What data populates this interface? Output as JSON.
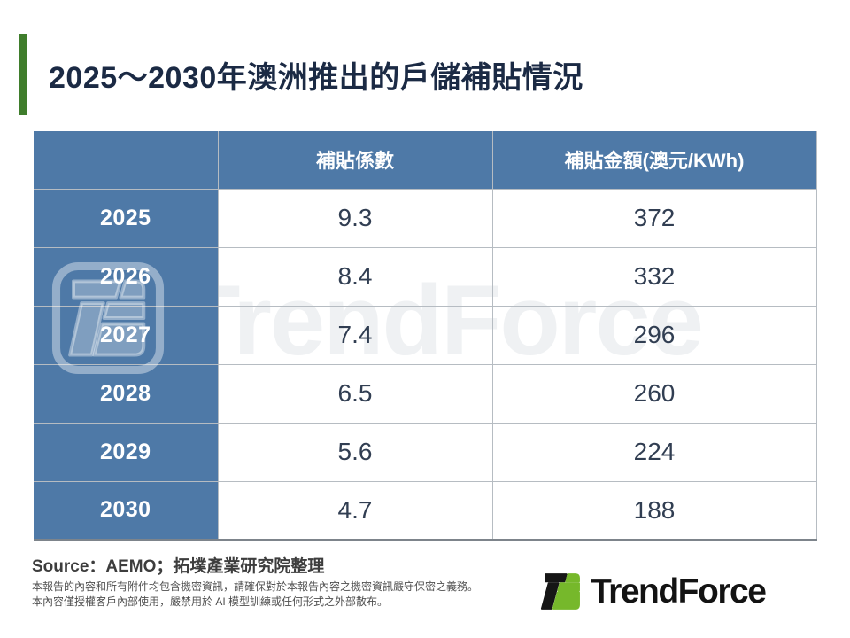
{
  "slide": {
    "title": "2025～2030年澳洲推出的戶儲補貼情況",
    "accent_color": "#3f7d2c",
    "table_header_color": "#4e79a7",
    "title_color": "#1b2a44"
  },
  "table": {
    "headers": [
      "補貼係數",
      "補貼金額(澳元/KWh)"
    ],
    "rows": [
      {
        "year": "2025",
        "coefficient": "9.3",
        "amount": "372"
      },
      {
        "year": "2026",
        "coefficient": "8.4",
        "amount": "332"
      },
      {
        "year": "2027",
        "coefficient": "7.4",
        "amount": "296"
      },
      {
        "year": "2028",
        "coefficient": "6.5",
        "amount": "260"
      },
      {
        "year": "2029",
        "coefficient": "5.6",
        "amount": "224"
      },
      {
        "year": "2030",
        "coefficient": "4.7",
        "amount": "188"
      }
    ]
  },
  "chart_data": {
    "type": "table",
    "title": "2025～2030年澳洲推出的戶儲補貼情況",
    "categories": [
      "2025",
      "2026",
      "2027",
      "2028",
      "2029",
      "2030"
    ],
    "series": [
      {
        "name": "補貼係數",
        "values": [
          9.3,
          8.4,
          7.4,
          6.5,
          5.6,
          4.7
        ]
      },
      {
        "name": "補貼金額(澳元/KWh)",
        "values": [
          372,
          332,
          296,
          260,
          224,
          188
        ]
      }
    ]
  },
  "footer": {
    "source": "Source：AEMO；拓墣產業研究院整理",
    "disclaimer_line1": "本報告的內容和所有附件均包含機密資訊，請確保對於本報告內容之機密資訊嚴守保密之義務。",
    "disclaimer_line2": "本內容僅授權客戶內部使用，嚴禁用於 AI 模型訓練或任何形式之外部散布。"
  },
  "branding": {
    "logo_text": "TrendForce",
    "watermark_text": "TrendForce",
    "logo_green": "#76b82b",
    "logo_black": "#161616"
  }
}
